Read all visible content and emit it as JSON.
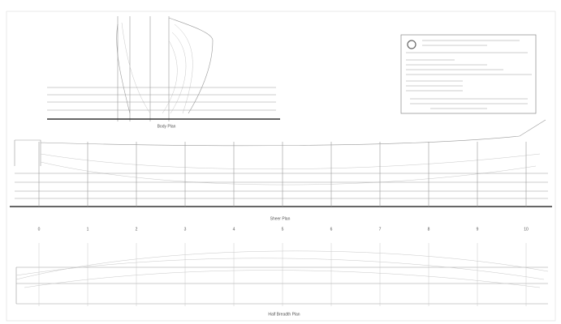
{
  "views": {
    "body_plan": "Body Plan",
    "sheer_plan": "Sheer Plan",
    "half_breadth_plan": "Half Breadth Plan"
  },
  "stations": [
    "0",
    "1",
    "2",
    "3",
    "4",
    "5",
    "6",
    "7",
    "8",
    "9",
    "10"
  ]
}
